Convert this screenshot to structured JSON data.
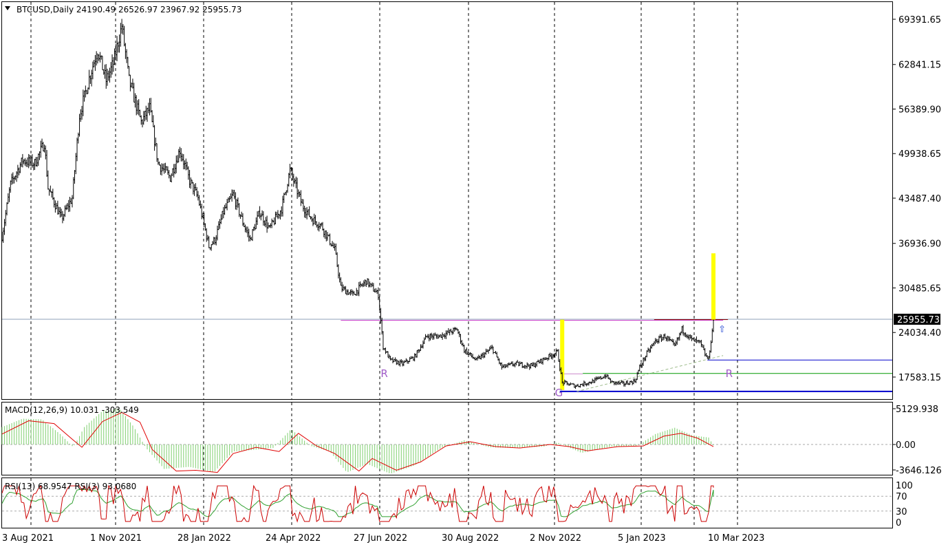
{
  "window": {
    "symbol_header": "BTCUSD,Daily  24190.49 26526.97 23967.92 25955.73"
  },
  "chart_data": [
    {
      "type": "candlestick",
      "symbol": "BTCUSD",
      "timeframe": "Daily",
      "ohlc_last": {
        "open": 24190.49,
        "high": 26526.97,
        "low": 23967.92,
        "close": 25955.73
      },
      "current_price_label": "25955.73",
      "y_ticks": [
        "69391.65",
        "62841.15",
        "56389.90",
        "49938.65",
        "43487.40",
        "36936.90",
        "30485.65",
        "24034.40",
        "17583.15"
      ],
      "x_ticks": [
        "3 Aug 2021",
        "1 Nov 2021",
        "28 Jan 2022",
        "24 Apr 2022",
        "27 Jun 2022",
        "30 Aug 2022",
        "2 Nov 2022",
        "5 Jan 2023",
        "10 Mar 2023"
      ],
      "close_path": [
        [
          "2021-08-03",
          38000
        ],
        [
          "2021-08-10",
          45500
        ],
        [
          "2021-08-20",
          49000
        ],
        [
          "2021-08-30",
          48500
        ],
        [
          "2021-09-07",
          51500
        ],
        [
          "2021-09-10",
          45000
        ],
        [
          "2021-09-21",
          40500
        ],
        [
          "2021-09-30",
          43500
        ],
        [
          "2021-10-06",
          55500
        ],
        [
          "2021-10-15",
          61500
        ],
        [
          "2021-10-21",
          65000
        ],
        [
          "2021-10-28",
          60500
        ],
        [
          "2021-11-03",
          63000
        ],
        [
          "2021-11-10",
          68500
        ],
        [
          "2021-11-16",
          60500
        ],
        [
          "2021-11-26",
          54500
        ],
        [
          "2021-12-03",
          56500
        ],
        [
          "2021-12-10",
          48500
        ],
        [
          "2021-12-20",
          46500
        ],
        [
          "2021-12-28",
          50500
        ],
        [
          "2022-01-05",
          46000
        ],
        [
          "2022-01-12",
          43500
        ],
        [
          "2022-01-21",
          36500
        ],
        [
          "2022-01-26",
          37500
        ],
        [
          "2022-02-02",
          41500
        ],
        [
          "2022-02-10",
          44000
        ],
        [
          "2022-02-18",
          40000
        ],
        [
          "2022-02-24",
          37500
        ],
        [
          "2022-03-04",
          41500
        ],
        [
          "2022-03-12",
          39000
        ],
        [
          "2022-03-22",
          42000
        ],
        [
          "2022-03-29",
          47500
        ],
        [
          "2022-04-08",
          42500
        ],
        [
          "2022-04-16",
          40500
        ],
        [
          "2022-04-24",
          39500
        ],
        [
          "2022-05-05",
          36000
        ],
        [
          "2022-05-10",
          30500
        ],
        [
          "2022-05-20",
          29500
        ],
        [
          "2022-05-31",
          31500
        ],
        [
          "2022-06-10",
          29500
        ],
        [
          "2022-06-14",
          22000
        ],
        [
          "2022-06-20",
          20000
        ],
        [
          "2022-06-30",
          19500
        ],
        [
          "2022-07-10",
          20500
        ],
        [
          "2022-07-20",
          23500
        ],
        [
          "2022-07-30",
          23500
        ],
        [
          "2022-08-14",
          24500
        ],
        [
          "2022-08-20",
          21500
        ],
        [
          "2022-08-30",
          20000
        ],
        [
          "2022-09-12",
          21800
        ],
        [
          "2022-09-20",
          19000
        ],
        [
          "2022-10-01",
          19500
        ],
        [
          "2022-10-15",
          19200
        ],
        [
          "2022-10-25",
          20200
        ],
        [
          "2022-11-05",
          21200
        ],
        [
          "2022-11-09",
          16800
        ],
        [
          "2022-11-20",
          16300
        ],
        [
          "2022-12-05",
          17000
        ],
        [
          "2022-12-15",
          17800
        ],
        [
          "2022-12-20",
          16800
        ],
        [
          "2022-12-30",
          16600
        ],
        [
          "2023-01-08",
          17000
        ],
        [
          "2023-01-12",
          19000
        ],
        [
          "2023-01-18",
          21000
        ],
        [
          "2023-01-25",
          22800
        ],
        [
          "2023-02-02",
          23500
        ],
        [
          "2023-02-10",
          22000
        ],
        [
          "2023-02-16",
          24500
        ],
        [
          "2023-02-24",
          23000
        ],
        [
          "2023-03-03",
          22500
        ],
        [
          "2023-03-08",
          20500
        ],
        [
          "2023-03-10",
          20200
        ],
        [
          "2023-03-13",
          24200
        ],
        [
          "2023-03-14",
          25955.73
        ]
      ],
      "horizontal_levels": [
        {
          "price": 25955.73,
          "color": "#8ea0b8",
          "extends": "full-width"
        },
        {
          "price": 25800,
          "color": "#cc44cc",
          "from": "2022-05-10",
          "to": "2023-03-22"
        },
        {
          "price": 25900,
          "color": "#880000",
          "from": "2023-01-24",
          "to": "2023-03-26"
        },
        {
          "price": 20050,
          "color": "#0000cc",
          "from": "2023-03-09",
          "to": "end"
        },
        {
          "price": 18100,
          "color": "#009900",
          "from": "2022-11-26",
          "to": "end"
        },
        {
          "price": 18050,
          "color": "#cc88cc",
          "from": "2022-11-09",
          "to": "2022-11-26"
        },
        {
          "price": 15500,
          "color": "#0000cc",
          "from": "2022-11-07",
          "to": "end"
        }
      ],
      "trend_line": {
        "from": [
          "2022-11-21",
          15500
        ],
        "to": [
          "2023-03-22",
          20700
        ],
        "color": "#9dbb8a",
        "style": "dashed"
      },
      "highlight_bars": [
        {
          "date": "2022-11-09",
          "low": 15700,
          "high": 25900,
          "color": "#ffff00"
        },
        {
          "date": "2023-03-14",
          "low": 25900,
          "high": 35500,
          "color": "#ffff00"
        }
      ],
      "annotations": [
        {
          "text": "R",
          "date": "2022-06-12",
          "price": 17600
        },
        {
          "text": "G",
          "date": "2022-11-03",
          "price": 14800
        },
        {
          "text": "R",
          "date": "2023-03-24",
          "price": 17600
        },
        {
          "text": "⇧",
          "date": "2023-03-18",
          "price": 24100,
          "color": "#1a3fd0"
        }
      ]
    },
    {
      "type": "macd",
      "label": "MACD(12,26,9) 10.031 -303.549",
      "y_ticks": [
        "5129.938",
        "0.00",
        "-3646.126"
      ],
      "histogram_path": [
        [
          "2021-08-03",
          2500
        ],
        [
          "2021-08-20",
          3700
        ],
        [
          "2021-09-05",
          3600
        ],
        [
          "2021-09-20",
          1500
        ],
        [
          "2021-10-01",
          -400
        ],
        [
          "2021-10-10",
          2500
        ],
        [
          "2021-10-25",
          4800
        ],
        [
          "2021-11-08",
          5200
        ],
        [
          "2021-11-20",
          2500
        ],
        [
          "2021-11-30",
          -500
        ],
        [
          "2021-12-15",
          -3500
        ],
        [
          "2022-01-05",
          -3200
        ],
        [
          "2022-01-25",
          -4000
        ],
        [
          "2022-02-10",
          -1000
        ],
        [
          "2022-02-25",
          -800
        ],
        [
          "2022-03-15",
          -500
        ],
        [
          "2022-03-30",
          2200
        ],
        [
          "2022-04-15",
          -200
        ],
        [
          "2022-05-01",
          -1000
        ],
        [
          "2022-05-15",
          -4000
        ],
        [
          "2022-06-01",
          -2800
        ],
        [
          "2022-06-20",
          -4200
        ],
        [
          "2022-07-10",
          -3000
        ],
        [
          "2022-08-01",
          -500
        ],
        [
          "2022-08-20",
          600
        ],
        [
          "2022-09-10",
          -400
        ],
        [
          "2022-10-01",
          -500
        ],
        [
          "2022-10-25",
          -300
        ],
        [
          "2022-11-05",
          300
        ],
        [
          "2022-11-25",
          -1200
        ],
        [
          "2022-12-20",
          -300
        ],
        [
          "2023-01-10",
          -200
        ],
        [
          "2023-01-25",
          1500
        ],
        [
          "2023-02-10",
          2400
        ],
        [
          "2023-02-25",
          1300
        ],
        [
          "2023-03-10",
          1000
        ],
        [
          "2023-03-14",
          -100
        ]
      ],
      "signal_path": [
        [
          "2021-08-03",
          1500
        ],
        [
          "2021-08-25",
          3400
        ],
        [
          "2021-09-15",
          3000
        ],
        [
          "2021-10-01",
          600
        ],
        [
          "2021-10-08",
          -400
        ],
        [
          "2021-10-25",
          3300
        ],
        [
          "2021-11-10",
          4600
        ],
        [
          "2021-11-25",
          3200
        ],
        [
          "2021-12-05",
          -700
        ],
        [
          "2021-12-25",
          -3800
        ],
        [
          "2022-01-10",
          -3700
        ],
        [
          "2022-01-28",
          -4000
        ],
        [
          "2022-02-10",
          -1300
        ],
        [
          "2022-03-01",
          -400
        ],
        [
          "2022-03-20",
          -1000
        ],
        [
          "2022-04-05",
          1600
        ],
        [
          "2022-04-20",
          -200
        ],
        [
          "2022-05-05",
          -1300
        ],
        [
          "2022-05-25",
          -3800
        ],
        [
          "2022-06-05",
          -2000
        ],
        [
          "2022-06-25",
          -3700
        ],
        [
          "2022-07-15",
          -2500
        ],
        [
          "2022-08-05",
          -200
        ],
        [
          "2022-08-25",
          400
        ],
        [
          "2022-09-15",
          -300
        ],
        [
          "2022-10-05",
          -500
        ],
        [
          "2022-10-30",
          0
        ],
        [
          "2022-11-15",
          -300
        ],
        [
          "2022-11-30",
          -900
        ],
        [
          "2022-12-25",
          -300
        ],
        [
          "2023-01-15",
          -200
        ],
        [
          "2023-02-01",
          1200
        ],
        [
          "2023-02-15",
          1600
        ],
        [
          "2023-03-01",
          900
        ],
        [
          "2023-03-14",
          -300
        ]
      ]
    },
    {
      "type": "rsi",
      "label": "RSI(13) 68.9547 RSI(3) 93.0680",
      "y_ticks": [
        "100",
        "70",
        "30",
        "0"
      ],
      "levels": [
        70,
        30
      ],
      "series": [
        {
          "name": "RSI(13)",
          "color": "#2fa02f",
          "last": 68.9547
        },
        {
          "name": "RSI(3)",
          "color": "#cc0000",
          "last": 93.068
        }
      ]
    }
  ]
}
